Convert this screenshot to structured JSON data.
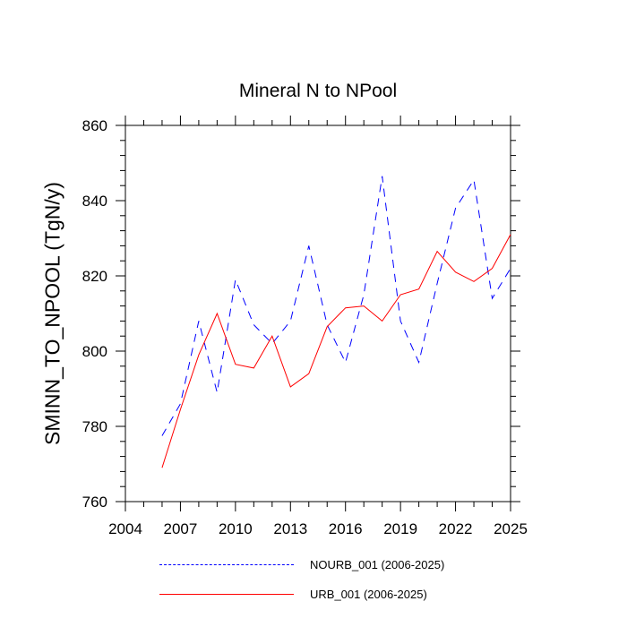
{
  "chart_data": {
    "type": "line",
    "title": "Mineral N to NPool",
    "xlabel": "",
    "ylabel": "SMINN_TO_NPOOL  (TgN/y)",
    "xlim": [
      2004,
      2025
    ],
    "ylim": [
      760,
      860
    ],
    "xticks": [
      2004,
      2007,
      2010,
      2013,
      2016,
      2019,
      2022,
      2025
    ],
    "yticks": [
      760,
      780,
      800,
      820,
      840,
      860
    ],
    "x": [
      2006,
      2007,
      2008,
      2009,
      2010,
      2011,
      2012,
      2013,
      2014,
      2015,
      2016,
      2017,
      2018,
      2019,
      2020,
      2021,
      2022,
      2023,
      2024,
      2025
    ],
    "series": [
      {
        "name": "NOURB_001 (2006-2025)",
        "color": "#0000ff",
        "style": "dashed",
        "values": [
          777.5,
          786,
          808,
          789,
          819,
          807,
          802,
          808,
          828,
          807,
          797,
          815,
          846.5,
          808,
          797,
          818,
          838,
          845.5,
          814,
          822
        ]
      },
      {
        "name": "URB_001 (2006-2025)",
        "color": "#ff0000",
        "style": "solid",
        "values": [
          769,
          784.5,
          799,
          810,
          796.5,
          795.5,
          804,
          790.5,
          794,
          806.5,
          811.5,
          812,
          808,
          815,
          816.5,
          826.5,
          821,
          818.5,
          822,
          831
        ]
      }
    ]
  }
}
